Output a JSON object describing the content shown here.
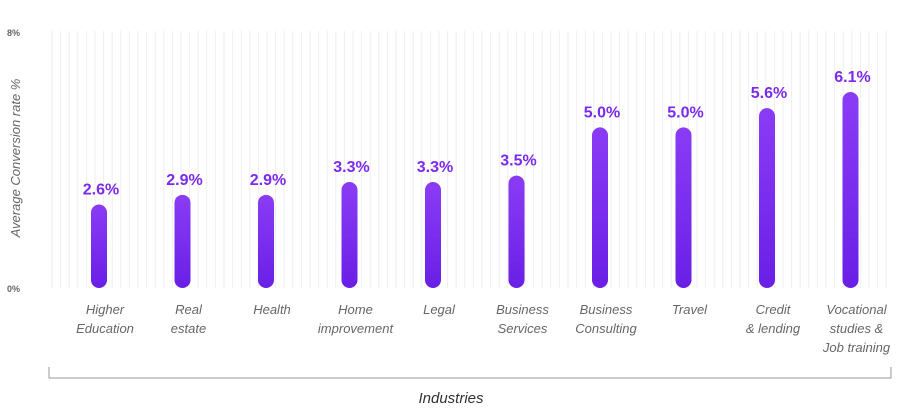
{
  "chart_data": {
    "type": "bar",
    "categories": [
      [
        "Higher",
        "Education"
      ],
      [
        "Real",
        "estate"
      ],
      [
        "Health"
      ],
      [
        "Home",
        "improvement"
      ],
      [
        "Legal"
      ],
      [
        "Business",
        "Services"
      ],
      [
        "Business",
        "Consulting"
      ],
      [
        "Travel"
      ],
      [
        "Credit",
        "& lending"
      ],
      [
        "Vocational",
        "studies &",
        "Job training"
      ]
    ],
    "values": [
      2.6,
      2.9,
      2.9,
      3.3,
      3.3,
      3.5,
      5.0,
      5.0,
      5.6,
      6.1
    ],
    "value_labels": [
      "2.6%",
      "2.9%",
      "2.9%",
      "3.3%",
      "3.3%",
      "3.5%",
      "5.0%",
      "5.0%",
      "5.6%",
      "6.1%"
    ],
    "ylabel": "Average Conversion rate %",
    "xlabel": "Industries",
    "ylim": [
      0,
      8
    ],
    "y_ticks": [
      "0%",
      "8%"
    ],
    "grid": true,
    "colors": {
      "bar_top": "#8a3cf5",
      "bar_bottom": "#6a1fe6",
      "label": "#7b2bf0"
    }
  }
}
